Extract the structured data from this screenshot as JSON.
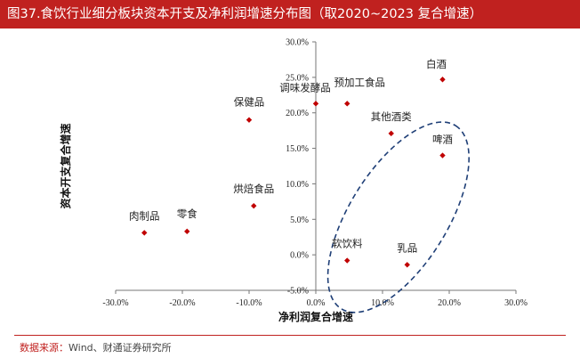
{
  "title": "图37.食饮行业细分板块资本开支及净利润增速分布图（取2020~2023 复合增速）",
  "source": {
    "label": "数据来源：",
    "text": "Wind、财通证券研究所"
  },
  "colors": {
    "accent": "#c0211f",
    "marker": "#c00000",
    "ellipse": "#1f3f77"
  },
  "chart_data": {
    "type": "scatter",
    "title": "食饮行业细分板块资本开支及净利润增速分布图（取2020~2023 复合增速）",
    "xlabel": "净利润复合增速",
    "ylabel": "资本开支复合增速",
    "xlim": [
      -0.3,
      0.3
    ],
    "ylim": [
      -0.05,
      0.3
    ],
    "xticks": [
      -0.3,
      -0.2,
      -0.1,
      0.0,
      0.1,
      0.2,
      0.3
    ],
    "yticks": [
      -0.05,
      0.0,
      0.05,
      0.1,
      0.15,
      0.2,
      0.25,
      0.3
    ],
    "xtick_labels": [
      "-30.0%",
      "-20.0%",
      "-10.0%",
      "0.0%",
      "10.0%",
      "20.0%",
      "30.0%"
    ],
    "ytick_labels": [
      "-5.0%",
      "0.0%",
      "5.0%",
      "10.0%",
      "15.0%",
      "20.0%",
      "25.0%",
      "30.0%"
    ],
    "points": [
      {
        "name": "白酒",
        "x": 0.19,
        "y": 0.247
      },
      {
        "name": "预加工食品",
        "x": 0.047,
        "y": 0.213
      },
      {
        "name": "调味发酵品",
        "x": 0.0,
        "y": 0.213
      },
      {
        "name": "保健品",
        "x": -0.1,
        "y": 0.19
      },
      {
        "name": "其他酒类",
        "x": 0.113,
        "y": 0.171
      },
      {
        "name": "啤酒",
        "x": 0.19,
        "y": 0.14
      },
      {
        "name": "烘焙食品",
        "x": -0.093,
        "y": 0.069
      },
      {
        "name": "零食",
        "x": -0.193,
        "y": 0.033
      },
      {
        "name": "肉制品",
        "x": -0.257,
        "y": 0.031
      },
      {
        "name": "软饮料",
        "x": 0.047,
        "y": -0.008
      },
      {
        "name": "乳品",
        "x": 0.137,
        "y": -0.014
      }
    ],
    "annotations": [
      {
        "type": "dashed-ellipse",
        "encloses": [
          "啤酒",
          "软饮料",
          "乳品"
        ]
      }
    ]
  }
}
